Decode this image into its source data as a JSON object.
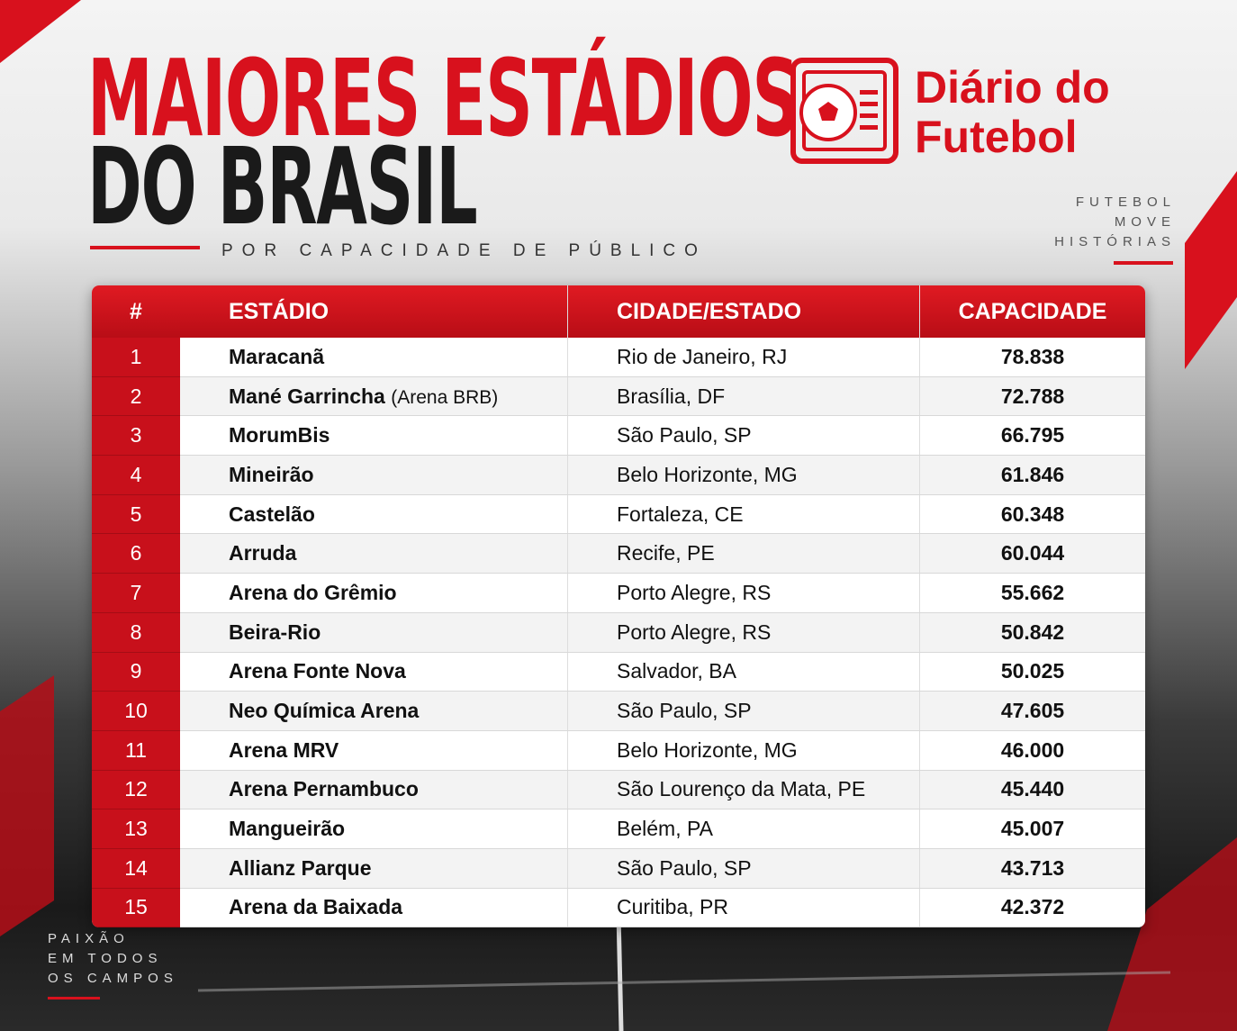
{
  "header": {
    "title_line1": "MAIORES ESTÁDIOS",
    "title_line2": "DO BRASIL",
    "subtitle": "POR CAPACIDADE DE PÚBLICO"
  },
  "logo": {
    "line1": "Diário do",
    "line2": "Futebol"
  },
  "tagline_right": [
    "FUTEBOL",
    "MOVE",
    "HISTÓRIAS"
  ],
  "tagline_left": [
    "PAIXÃO",
    "EM TODOS",
    "OS CAMPOS"
  ],
  "table": {
    "columns": [
      "#",
      "ESTÁDIO",
      "CIDADE/ESTADO",
      "CAPACIDADE"
    ],
    "rows": [
      {
        "rank": 1,
        "stadium": "Maracanã",
        "city": "Rio de Janeiro, RJ",
        "capacity": "78.838"
      },
      {
        "rank": 2,
        "stadium": "Mané Garrincha",
        "note": "(Arena BRB)",
        "city": "Brasília, DF",
        "capacity": "72.788"
      },
      {
        "rank": 3,
        "stadium": "MorumBis",
        "city": "São Paulo, SP",
        "capacity": "66.795"
      },
      {
        "rank": 4,
        "stadium": "Mineirão",
        "city": "Belo Horizonte, MG",
        "capacity": "61.846"
      },
      {
        "rank": 5,
        "stadium": "Castelão",
        "city": "Fortaleza, CE",
        "capacity": "60.348"
      },
      {
        "rank": 6,
        "stadium": "Arruda",
        "city": "Recife, PE",
        "capacity": "60.044"
      },
      {
        "rank": 7,
        "stadium": "Arena do Grêmio",
        "city": "Porto Alegre, RS",
        "capacity": "55.662"
      },
      {
        "rank": 8,
        "stadium": "Beira-Rio",
        "city": "Porto Alegre, RS",
        "capacity": "50.842"
      },
      {
        "rank": 9,
        "stadium": "Arena Fonte Nova",
        "city": "Salvador, BA",
        "capacity": "50.025"
      },
      {
        "rank": 10,
        "stadium": "Neo Química Arena",
        "city": "São Paulo, SP",
        "capacity": "47.605"
      },
      {
        "rank": 11,
        "stadium": "Arena MRV",
        "city": "Belo Horizonte, MG",
        "capacity": "46.000"
      },
      {
        "rank": 12,
        "stadium": "Arena Pernambuco",
        "city": "São Lourenço da Mata, PE",
        "capacity": "45.440"
      },
      {
        "rank": 13,
        "stadium": "Mangueirão",
        "city": "Belém, PA",
        "capacity": "45.007"
      },
      {
        "rank": 14,
        "stadium": "Allianz Parque",
        "city": "São Paulo, SP",
        "capacity": "43.713"
      },
      {
        "rank": 15,
        "stadium": "Arena da Baixada",
        "city": "Curitiba, PR",
        "capacity": "42.372"
      }
    ]
  }
}
